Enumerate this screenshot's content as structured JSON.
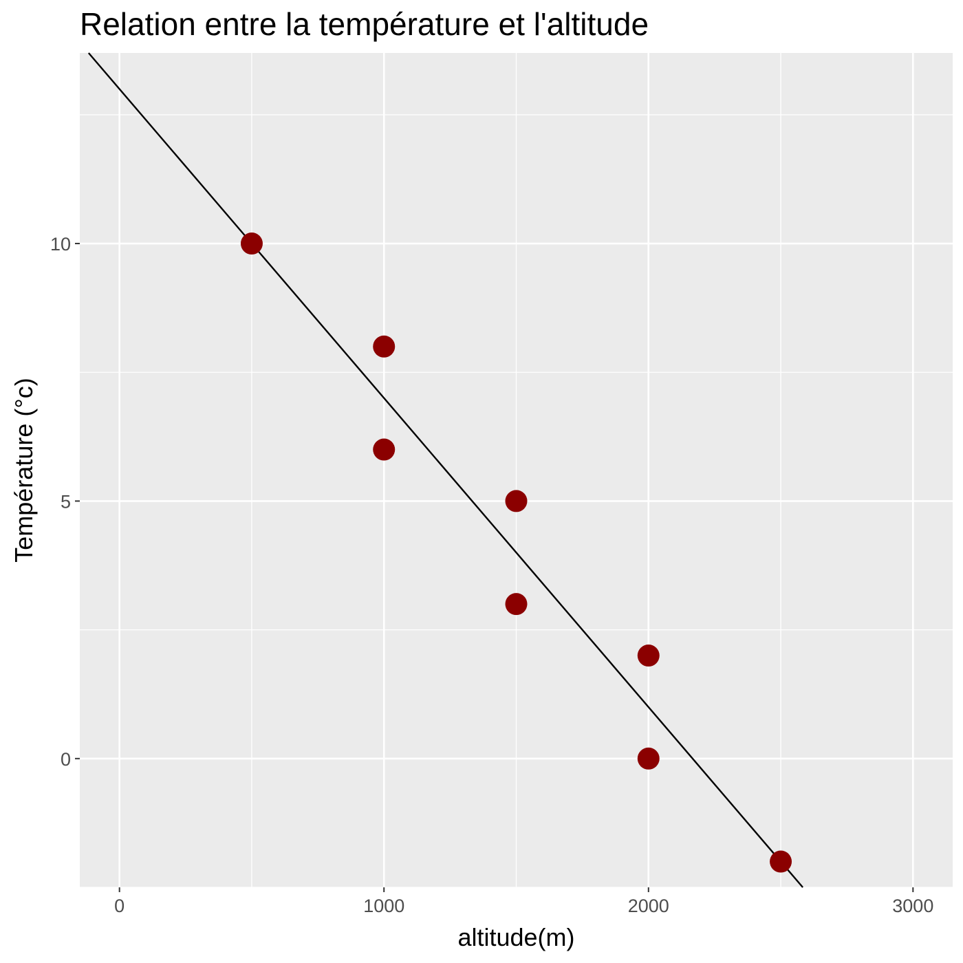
{
  "chart_data": {
    "type": "scatter",
    "title": "Relation entre la température et l'altitude",
    "xlabel": "altitude(m)",
    "ylabel": "Température (°c)",
    "xlim": [
      -150,
      3150
    ],
    "ylim": [
      -2.5,
      13.7
    ],
    "x_ticks": [
      0,
      1000,
      2000,
      3000
    ],
    "x_tick_labels": [
      "0",
      "1000",
      "2000",
      "3000"
    ],
    "x_minor_grid": [
      500,
      1500,
      2500
    ],
    "y_ticks": [
      0,
      5,
      10
    ],
    "y_tick_labels": [
      "0",
      "5",
      "10"
    ],
    "y_minor_grid": [
      -2.5,
      2.5,
      7.5,
      12.5
    ],
    "grid": true,
    "legend": "none",
    "points": [
      {
        "x": 500,
        "y": 10
      },
      {
        "x": 1000,
        "y": 8
      },
      {
        "x": 1000,
        "y": 6
      },
      {
        "x": 1500,
        "y": 5
      },
      {
        "x": 1500,
        "y": 3
      },
      {
        "x": 2000,
        "y": 2
      },
      {
        "x": 2000,
        "y": 0
      },
      {
        "x": 2500,
        "y": -2
      }
    ],
    "fit_line": {
      "intercept": 13.0,
      "slope": -0.006
    },
    "colors": {
      "panel": "#ebebeb",
      "grid": "#ffffff",
      "point": "#8b0000",
      "line": "#000000",
      "tick": "#333333"
    }
  }
}
